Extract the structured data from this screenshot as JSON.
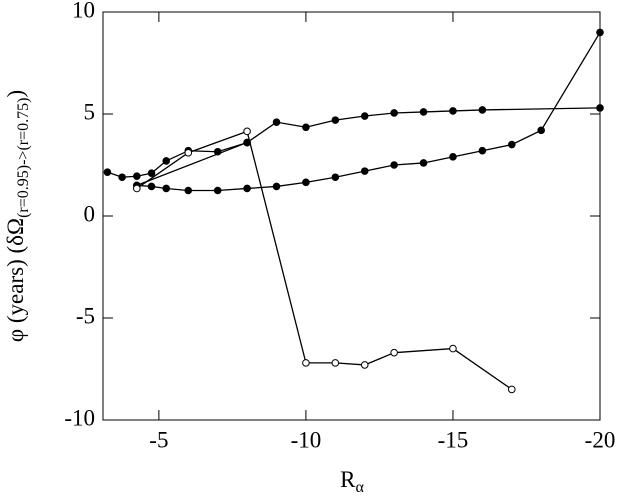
{
  "chart_data": {
    "type": "line",
    "xlabel": {
      "text": "R",
      "sub": "α"
    },
    "ylabel": {
      "text": "φ (years) (δΩ",
      "sub": "(r=0.95)->(r=0.75)",
      "end": ")"
    },
    "xlim": [
      -3.1,
      -20
    ],
    "xticks": [
      -5,
      -10,
      -15,
      -20
    ],
    "ylim": [
      -10,
      10
    ],
    "yticks": [
      -10,
      -5,
      0,
      5,
      10
    ],
    "series": [
      {
        "color": "#000000",
        "marker": "filled",
        "x": [
          -3.25,
          -3.75,
          -4.25,
          -4.75,
          -5.25,
          -6,
          -7,
          -8,
          -9,
          -10,
          -11,
          -12,
          -13,
          -14,
          -15,
          -16,
          -20
        ],
        "values": [
          2.15,
          1.9,
          1.95,
          2.1,
          2.7,
          3.2,
          3.15,
          3.6,
          4.6,
          4.35,
          4.7,
          4.9,
          5.05,
          5.1,
          5.15,
          5.2,
          5.3
        ]
      },
      {
        "color": "#000000",
        "marker": "filled",
        "x": [
          -4.25,
          -4.75,
          -5.25,
          -6,
          -7,
          -8,
          -9,
          -10,
          -11,
          -12,
          -13,
          -14,
          -15,
          -16,
          -17,
          -18,
          -20
        ],
        "values": [
          1.5,
          1.45,
          1.35,
          1.25,
          1.25,
          1.35,
          1.45,
          1.65,
          1.9,
          2.2,
          2.5,
          2.6,
          2.9,
          3.2,
          3.5,
          4.2,
          9.0
        ]
      },
      {
        "color": "#000000",
        "marker": "filled",
        "x": [
          -4.25,
          -8
        ],
        "values": [
          1.5,
          3.6
        ]
      },
      {
        "color": "#000000",
        "marker": "open",
        "x": [
          -4.25,
          -6,
          -8,
          -10,
          -11,
          -12,
          -13,
          -15,
          -17
        ],
        "values": [
          1.35,
          3.1,
          4.15,
          -7.2,
          -7.2,
          -7.3,
          -6.7,
          -6.5,
          -8.5
        ]
      }
    ]
  }
}
